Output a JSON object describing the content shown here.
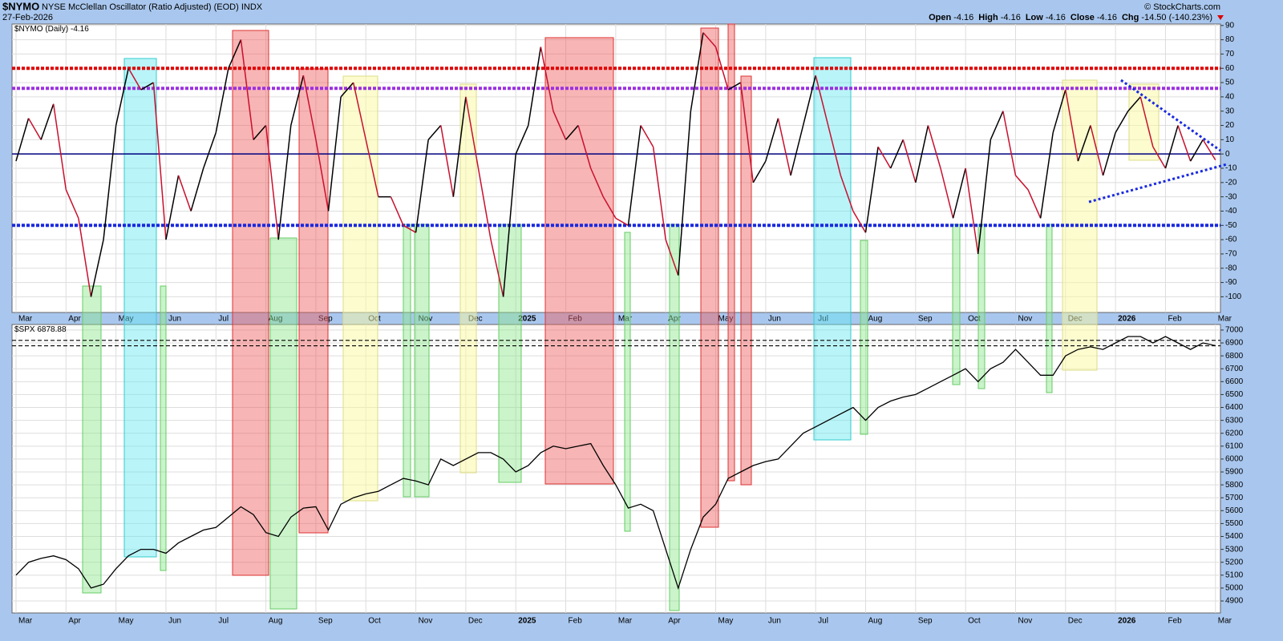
{
  "header": {
    "symbol": "$NYMO",
    "description": "NYSE McClellan Oscillator (Ratio Adjusted) (EOD)",
    "exchange": "INDX",
    "date": "27-Feb-2026",
    "copyright": "© StockCharts.com",
    "quote": [
      {
        "label": "Open",
        "value": "-4.16"
      },
      {
        "label": "High",
        "value": "-4.16"
      },
      {
        "label": "Low",
        "value": "-4.16"
      },
      {
        "label": "Close",
        "value": "-4.16"
      },
      {
        "label": "Chg",
        "value": "-14.50 (-140.23%)"
      }
    ]
  },
  "chart_data": [
    {
      "type": "line",
      "grid": true,
      "x": [
        0,
        0.25,
        0.5,
        0.75,
        1,
        1.25,
        1.5,
        1.75,
        2,
        2.25,
        2.5,
        2.75,
        3,
        3.25,
        3.5,
        3.75,
        4,
        4.25,
        4.5,
        4.75,
        5,
        5.25,
        5.5,
        5.75,
        6,
        6.25,
        6.5,
        6.75,
        7,
        7.25,
        7.5,
        7.75,
        8,
        8.25,
        8.5,
        8.75,
        9,
        9.25,
        9.5,
        9.75,
        10,
        10.25,
        10.5,
        10.75,
        11,
        11.25,
        11.5,
        11.75,
        12,
        12.25,
        12.5,
        12.75,
        13,
        13.25,
        13.5,
        13.75,
        14,
        14.25,
        14.5,
        14.75,
        15,
        15.25,
        15.5,
        15.75,
        16,
        16.25,
        16.5,
        16.75,
        17,
        17.25,
        17.5,
        17.75,
        18,
        18.25,
        18.5,
        18.75,
        19,
        19.25,
        19.5,
        19.75,
        20,
        20.25,
        20.5,
        20.75,
        21,
        21.25,
        21.5,
        21.75,
        22,
        22.25,
        22.5,
        22.75,
        23,
        23.25,
        23.5,
        23.75,
        24
      ],
      "series": [
        {
          "name": "$NYMO (Daily)",
          "color": "#000000",
          "color_down": "#c8102e",
          "values": [
            -5,
            25,
            10,
            35,
            -25,
            -45,
            -100,
            -60,
            20,
            60,
            45,
            50,
            -60,
            -15,
            -40,
            -10,
            15,
            60,
            80,
            10,
            20,
            -60,
            20,
            55,
            10,
            -40,
            40,
            50,
            10,
            -30,
            -30,
            -50,
            -55,
            10,
            20,
            -30,
            40,
            -10,
            -60,
            -100,
            0,
            20,
            75,
            30,
            10,
            20,
            -10,
            -30,
            -45,
            -50,
            20,
            5,
            -60,
            -85,
            30,
            85,
            75,
            45,
            50,
            -20,
            -5,
            25,
            -15,
            20,
            55,
            20,
            -15,
            -40,
            -55,
            5,
            -10,
            10,
            -20,
            20,
            -10,
            -45,
            -10,
            -70,
            10,
            30,
            -15,
            -25,
            -45,
            15,
            45,
            -5,
            20,
            -15,
            15,
            30,
            40,
            5,
            -10,
            20,
            -5,
            10,
            -4.16
          ]
        }
      ],
      "hlines": [
        {
          "value": 60,
          "color": "#e00000",
          "style": "dotted"
        },
        {
          "value": 46,
          "color": "#9b30e0",
          "style": "dotted"
        },
        {
          "value": 0,
          "color": "#000080",
          "style": "solid"
        },
        {
          "value": -50,
          "color": "#1a2ae0",
          "style": "dotted"
        }
      ],
      "xlim": [
        -0.08,
        24.1
      ],
      "ylim": [
        -111,
        91
      ],
      "yticks": [
        -100,
        -90,
        -80,
        -70,
        -60,
        -50,
        -40,
        -30,
        -20,
        -10,
        0,
        10,
        20,
        30,
        40,
        50,
        60,
        70,
        80,
        90
      ],
      "xticks": [
        {
          "value": 0,
          "label": "Mar"
        },
        {
          "value": 1,
          "label": "Apr"
        },
        {
          "value": 2,
          "label": "May"
        },
        {
          "value": 3,
          "label": "Jun"
        },
        {
          "value": 4,
          "label": "Jul"
        },
        {
          "value": 5,
          "label": "Aug"
        },
        {
          "value": 6,
          "label": "Sep"
        },
        {
          "value": 7,
          "label": "Oct"
        },
        {
          "value": 8,
          "label": "Nov"
        },
        {
          "value": 9,
          "label": "Dec"
        },
        {
          "value": 10,
          "label": "2025"
        },
        {
          "value": 11,
          "label": "Feb"
        },
        {
          "value": 12,
          "label": "Mar"
        },
        {
          "value": 13,
          "label": "Apr"
        },
        {
          "value": 14,
          "label": "May"
        },
        {
          "value": 15,
          "label": "Jun"
        },
        {
          "value": 16,
          "label": "Jul"
        },
        {
          "value": 17,
          "label": "Aug"
        },
        {
          "value": 18,
          "label": "Sep"
        },
        {
          "value": 19,
          "label": "Oct"
        },
        {
          "value": 20,
          "label": "Nov"
        },
        {
          "value": 21,
          "label": "Dec"
        },
        {
          "value": 22,
          "label": "2026"
        },
        {
          "value": 23,
          "label": "Feb"
        },
        {
          "value": 24,
          "label": "Mar"
        }
      ]
    },
    {
      "type": "line",
      "grid": true,
      "x": [
        0,
        0.25,
        0.5,
        0.75,
        1,
        1.25,
        1.5,
        1.75,
        2,
        2.25,
        2.5,
        2.75,
        3,
        3.25,
        3.5,
        3.75,
        4,
        4.25,
        4.5,
        4.75,
        5,
        5.25,
        5.5,
        5.75,
        6,
        6.25,
        6.5,
        6.75,
        7,
        7.25,
        7.5,
        7.75,
        8,
        8.25,
        8.5,
        8.75,
        9,
        9.25,
        9.5,
        9.75,
        10,
        10.25,
        10.5,
        10.75,
        11,
        11.25,
        11.5,
        11.75,
        12,
        12.25,
        12.5,
        12.75,
        13,
        13.25,
        13.5,
        13.75,
        14,
        14.25,
        14.5,
        14.75,
        15,
        15.25,
        15.5,
        15.75,
        16,
        16.25,
        16.5,
        16.75,
        17,
        17.25,
        17.5,
        17.75,
        18,
        18.25,
        18.5,
        18.75,
        19,
        19.25,
        19.5,
        19.75,
        20,
        20.25,
        20.5,
        20.75,
        21,
        21.25,
        21.5,
        21.75,
        22,
        22.25,
        22.5,
        22.75,
        23,
        23.25,
        23.5,
        23.75,
        24
      ],
      "series": [
        {
          "name": "$SPX",
          "color": "#000000",
          "values": [
            5100,
            5200,
            5230,
            5250,
            5220,
            5150,
            5000,
            5030,
            5150,
            5250,
            5300,
            5300,
            5270,
            5350,
            5400,
            5450,
            5470,
            5550,
            5630,
            5570,
            5430,
            5400,
            5550,
            5620,
            5630,
            5450,
            5650,
            5700,
            5730,
            5750,
            5800,
            5850,
            5830,
            5800,
            6000,
            5950,
            6000,
            6050,
            6050,
            6000,
            5900,
            5950,
            6050,
            6100,
            6080,
            6100,
            6120,
            5950,
            5800,
            5620,
            5650,
            5600,
            5300,
            5000,
            5300,
            5550,
            5650,
            5850,
            5900,
            5950,
            5980,
            6000,
            6100,
            6200,
            6250,
            6300,
            6350,
            6400,
            6300,
            6400,
            6450,
            6480,
            6500,
            6550,
            6600,
            6650,
            6700,
            6600,
            6700,
            6750,
            6850,
            6750,
            6650,
            6650,
            6800,
            6850,
            6870,
            6850,
            6900,
            6950,
            6950,
            6900,
            6950,
            6900,
            6850,
            6900,
            6878.88
          ]
        }
      ],
      "hlines": [
        {
          "value": 6920,
          "color": "#000000",
          "style": "dashed"
        },
        {
          "value": 6878,
          "color": "#000000",
          "style": "dashed"
        }
      ],
      "xlim": [
        -0.08,
        24.1
      ],
      "ylim": [
        4807,
        7043
      ],
      "yticks": [
        4900,
        5000,
        5100,
        5200,
        5300,
        5400,
        5500,
        5600,
        5700,
        5800,
        5900,
        6000,
        6100,
        6200,
        6300,
        6400,
        6500,
        6600,
        6700,
        6800,
        6900,
        7000
      ],
      "xticks": [
        {
          "value": 0,
          "label": "Mar"
        },
        {
          "value": 1,
          "label": "Apr"
        },
        {
          "value": 2,
          "label": "May"
        },
        {
          "value": 3,
          "label": "Jun"
        },
        {
          "value": 4,
          "label": "Jul"
        },
        {
          "value": 5,
          "label": "Aug"
        },
        {
          "value": 6,
          "label": "Sep"
        },
        {
          "value": 7,
          "label": "Oct"
        },
        {
          "value": 8,
          "label": "Nov"
        },
        {
          "value": 9,
          "label": "Dec"
        },
        {
          "value": 10,
          "label": "2025"
        },
        {
          "value": 11,
          "label": "Feb"
        },
        {
          "value": 12,
          "label": "Mar"
        },
        {
          "value": 13,
          "label": "Apr"
        },
        {
          "value": 14,
          "label": "May"
        },
        {
          "value": 15,
          "label": "Jun"
        },
        {
          "value": 16,
          "label": "Jul"
        },
        {
          "value": 17,
          "label": "Aug"
        },
        {
          "value": 18,
          "label": "Sep"
        },
        {
          "value": 19,
          "label": "Oct"
        },
        {
          "value": 20,
          "label": "Nov"
        },
        {
          "value": 21,
          "label": "Dec"
        },
        {
          "value": 22,
          "label": "2026"
        },
        {
          "value": 23,
          "label": "Feb"
        },
        {
          "value": 24,
          "label": "Mar"
        }
      ]
    }
  ]
}
